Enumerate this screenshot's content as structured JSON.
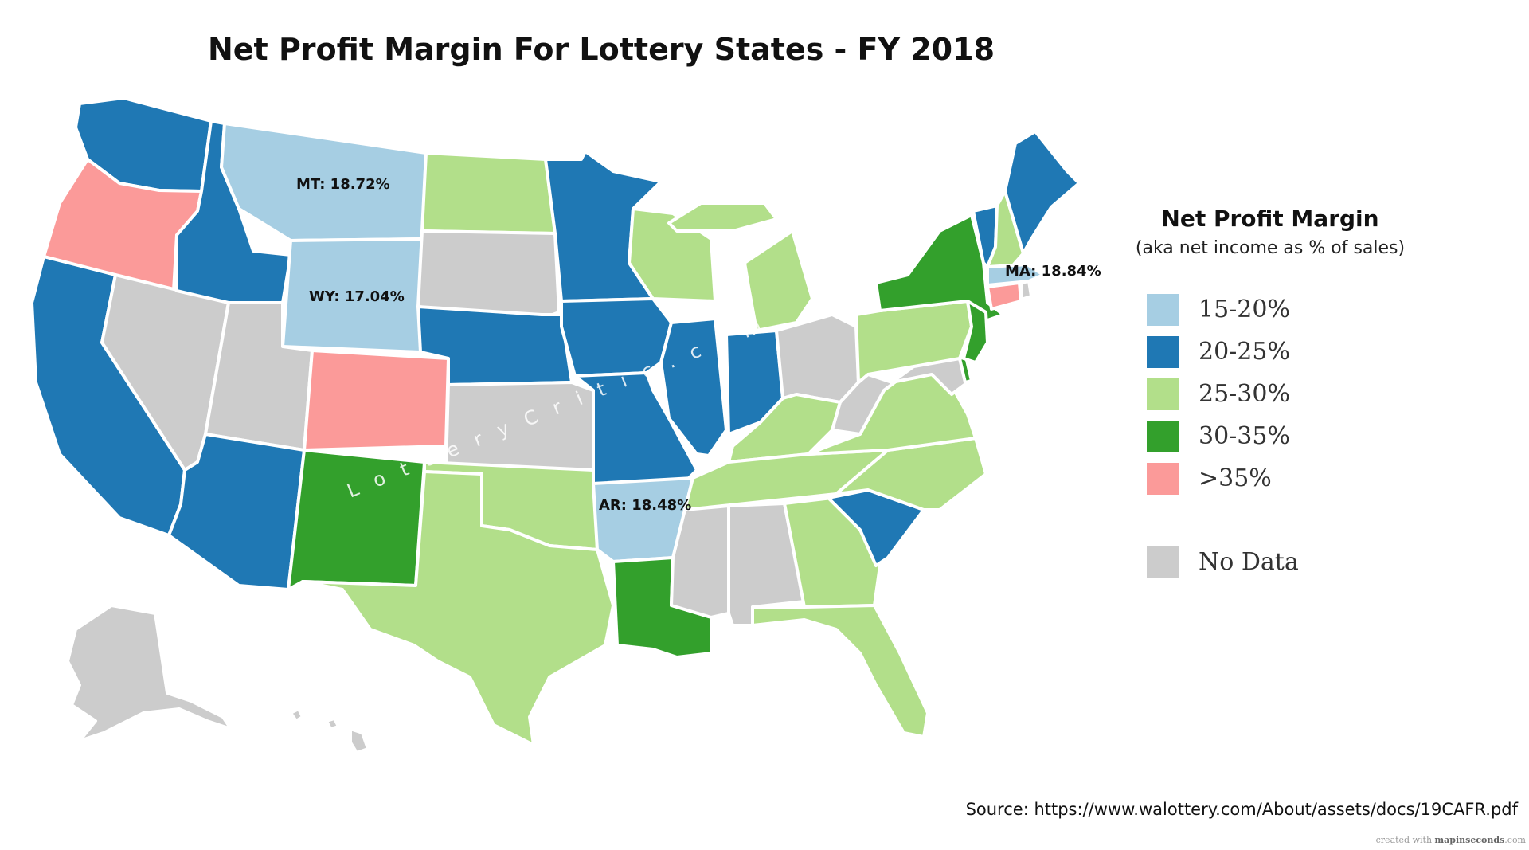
{
  "title": "Net Profit Margin For Lottery States - FY 2018",
  "legend": {
    "title": "Net Profit Margin",
    "subtitle": "(aka net income as % of sales)",
    "items": [
      {
        "label": "15-20%",
        "color": "#a6cee3"
      },
      {
        "label": "20-25%",
        "color": "#1f78b4"
      },
      {
        "label": "25-30%",
        "color": "#b2df8a"
      },
      {
        "label": "30-35%",
        "color": "#33a02c"
      },
      {
        "label": ">35%",
        "color": "#fb9a99"
      },
      {
        "label": "No Data",
        "color": "#cccccc"
      }
    ]
  },
  "state_labels": {
    "MT": "MT: 18.72%",
    "WY": "WY: 17.04%",
    "MA": "MA: 18.84%",
    "AR": "AR: 18.48%"
  },
  "state_categories": {
    "15-20%": [
      "MT",
      "WY",
      "AR",
      "MA"
    ],
    "20-25%": [
      "WA",
      "ID",
      "CA",
      "AZ",
      "NE",
      "MN",
      "IA",
      "MO",
      "IL",
      "IN",
      "SC",
      "ME",
      "VT"
    ],
    "25-30%": [
      "ND",
      "WI",
      "MI",
      "PA",
      "KY",
      "VA",
      "TN",
      "NC",
      "GA",
      "FL",
      "TX",
      "OK",
      "NH"
    ],
    "30-35%": [
      "NM",
      "LA",
      "NY",
      "NJ",
      "DE"
    ],
    ">35%": [
      "OR",
      "CO",
      "CT"
    ],
    "No Data": [
      "NV",
      "UT",
      "SD",
      "KS",
      "OH",
      "WV",
      "MS",
      "AL",
      "MD",
      "RI",
      "AK",
      "HI"
    ]
  },
  "watermark": "LotteryCritic.com",
  "source": "Source: https://www.walottery.com/About/assets/docs/19CAFR.pdf",
  "credit": {
    "prefix": "created with ",
    "brand": "mapinseconds",
    "suffix": ".com"
  }
}
